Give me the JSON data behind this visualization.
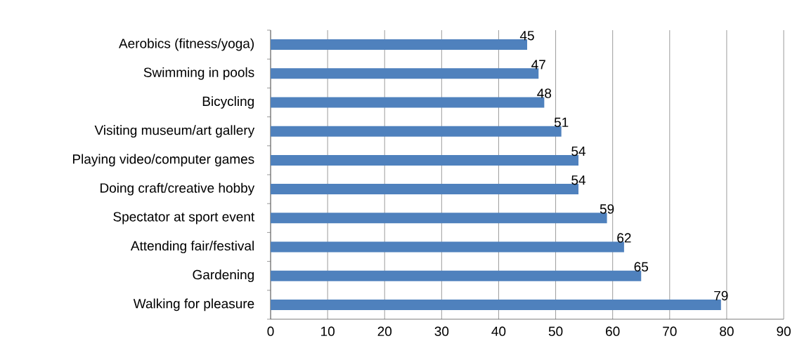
{
  "chart_data": {
    "type": "bar",
    "orientation": "horizontal",
    "categories": [
      "Aerobics (fitness/yoga)",
      "Swimming in pools",
      "Bicycling",
      "Visiting museum/art gallery",
      "Playing video/computer games",
      "Doing craft/creative hobby",
      "Spectator at sport event",
      "Attending fair/festival",
      "Gardening",
      "Walking for pleasure"
    ],
    "values": [
      45,
      47,
      48,
      51,
      54,
      54,
      59,
      62,
      65,
      79
    ],
    "color": "#4f81bd",
    "data_labels": true,
    "grid": "x",
    "xlim": [
      0,
      90
    ],
    "xticks": [
      0,
      10,
      20,
      30,
      40,
      50,
      60,
      70,
      80,
      90
    ]
  }
}
